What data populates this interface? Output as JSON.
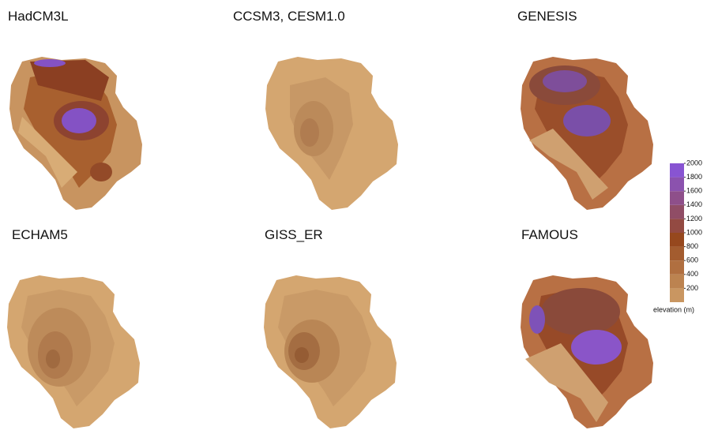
{
  "panels": [
    {
      "title": "HadCM3L"
    },
    {
      "title": "CCSM3, CESM1.0"
    },
    {
      "title": "GENESIS"
    },
    {
      "title": "ECHAM5"
    },
    {
      "title": "GISS_ER"
    },
    {
      "title": "FAMOUS"
    }
  ],
  "colorbar": {
    "range": [
      0,
      2000
    ],
    "ticks": [
      200,
      400,
      600,
      800,
      1000,
      1200,
      1400,
      1600,
      1800,
      2000
    ],
    "label": "elevation (m)"
  }
}
